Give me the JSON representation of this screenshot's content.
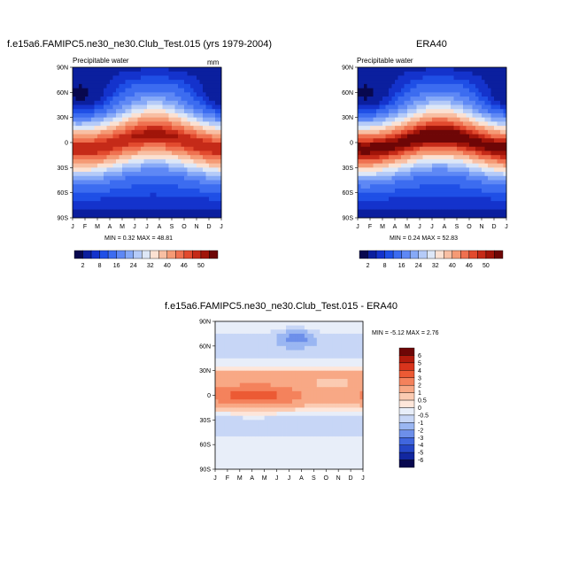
{
  "chart_data": [
    {
      "type": "heatmap",
      "title": "f.e15a6.FAMIPC5.ne30_ne30.Club_Test.015 (yrs 1979-2004)",
      "subtitle": "Precipitable water",
      "units": "mm",
      "x_ticks": [
        "J",
        "F",
        "M",
        "A",
        "M",
        "J",
        "J",
        "A",
        "S",
        "O",
        "N",
        "D",
        "J"
      ],
      "y_ticks": [
        "90N",
        "60N",
        "30N",
        "0",
        "30S",
        "60S",
        "90S"
      ],
      "stats": "MIN =   0.32 MAX =  48.81",
      "min": 0.32,
      "max": 48.81,
      "colorbar_labels": [
        "2",
        "8",
        "16",
        "24",
        "32",
        "40",
        "46",
        "50"
      ],
      "colorbar_levels": [
        2,
        4,
        6,
        8,
        12,
        16,
        20,
        24,
        28,
        32,
        36,
        40,
        44,
        46,
        48,
        50
      ],
      "colorbar_colors": [
        "#08084f",
        "#0b1f9e",
        "#1433cc",
        "#1f4fe6",
        "#3c6cf0",
        "#5e88f5",
        "#86a9f7",
        "#b5cbf8",
        "#dde7f7",
        "#fbe1d2",
        "#f8bfa3",
        "#f59a75",
        "#ef7150",
        "#e24a2e",
        "#c52a18",
        "#a01409",
        "#6e0606"
      ]
    },
    {
      "type": "heatmap",
      "title": "ERA40",
      "subtitle": "Precipitable water",
      "x_ticks": [
        "J",
        "F",
        "M",
        "A",
        "M",
        "J",
        "J",
        "A",
        "S",
        "O",
        "N",
        "D",
        "J"
      ],
      "y_ticks": [
        "90N",
        "60N",
        "30N",
        "0",
        "30S",
        "60S",
        "90S"
      ],
      "stats": "MIN =   0.24 MAX =  52.83",
      "min": 0.24,
      "max": 52.83,
      "colorbar_labels": [
        "2",
        "8",
        "16",
        "24",
        "32",
        "40",
        "46",
        "50"
      ],
      "colorbar_levels": [
        2,
        4,
        6,
        8,
        12,
        16,
        20,
        24,
        28,
        32,
        36,
        40,
        44,
        46,
        48,
        50
      ],
      "colorbar_colors": [
        "#08084f",
        "#0b1f9e",
        "#1433cc",
        "#1f4fe6",
        "#3c6cf0",
        "#5e88f5",
        "#86a9f7",
        "#b5cbf8",
        "#dde7f7",
        "#fbe1d2",
        "#f8bfa3",
        "#f59a75",
        "#ef7150",
        "#e24a2e",
        "#c52a18",
        "#a01409",
        "#6e0606"
      ]
    },
    {
      "type": "heatmap",
      "title": "f.e15a6.FAMIPC5.ne30_ne30.Club_Test.015 - ERA40",
      "x_ticks": [
        "J",
        "F",
        "M",
        "A",
        "M",
        "J",
        "J",
        "A",
        "S",
        "O",
        "N",
        "D",
        "J"
      ],
      "y_ticks": [
        "90N",
        "60N",
        "30N",
        "0",
        "30S",
        "60S",
        "90S"
      ],
      "stats": "MIN =  -5.12 MAX =   2.76",
      "min": -5.12,
      "max": 2.76,
      "colorbar_labels": [
        "6",
        "5",
        "4",
        "3",
        "2",
        "1",
        "0.5",
        "0",
        "-0.5",
        "-1",
        "-2",
        "-3",
        "-4",
        "-5",
        "-6"
      ],
      "colorbar_levels": [
        -6,
        -5,
        -4,
        -3,
        -2,
        -1,
        -0.5,
        0,
        0.5,
        1,
        2,
        3,
        4,
        5,
        6
      ],
      "colorbar_colors": [
        "#6e0606",
        "#b21b0d",
        "#d8341c",
        "#ec5a34",
        "#f4825c",
        "#f8a885",
        "#fbcbb2",
        "#fde6da",
        "#e8eef9",
        "#c7d6f6",
        "#9ab6f2",
        "#6d8fea",
        "#4066de",
        "#2546c6",
        "#1227a0",
        "#08084f"
      ]
    }
  ]
}
